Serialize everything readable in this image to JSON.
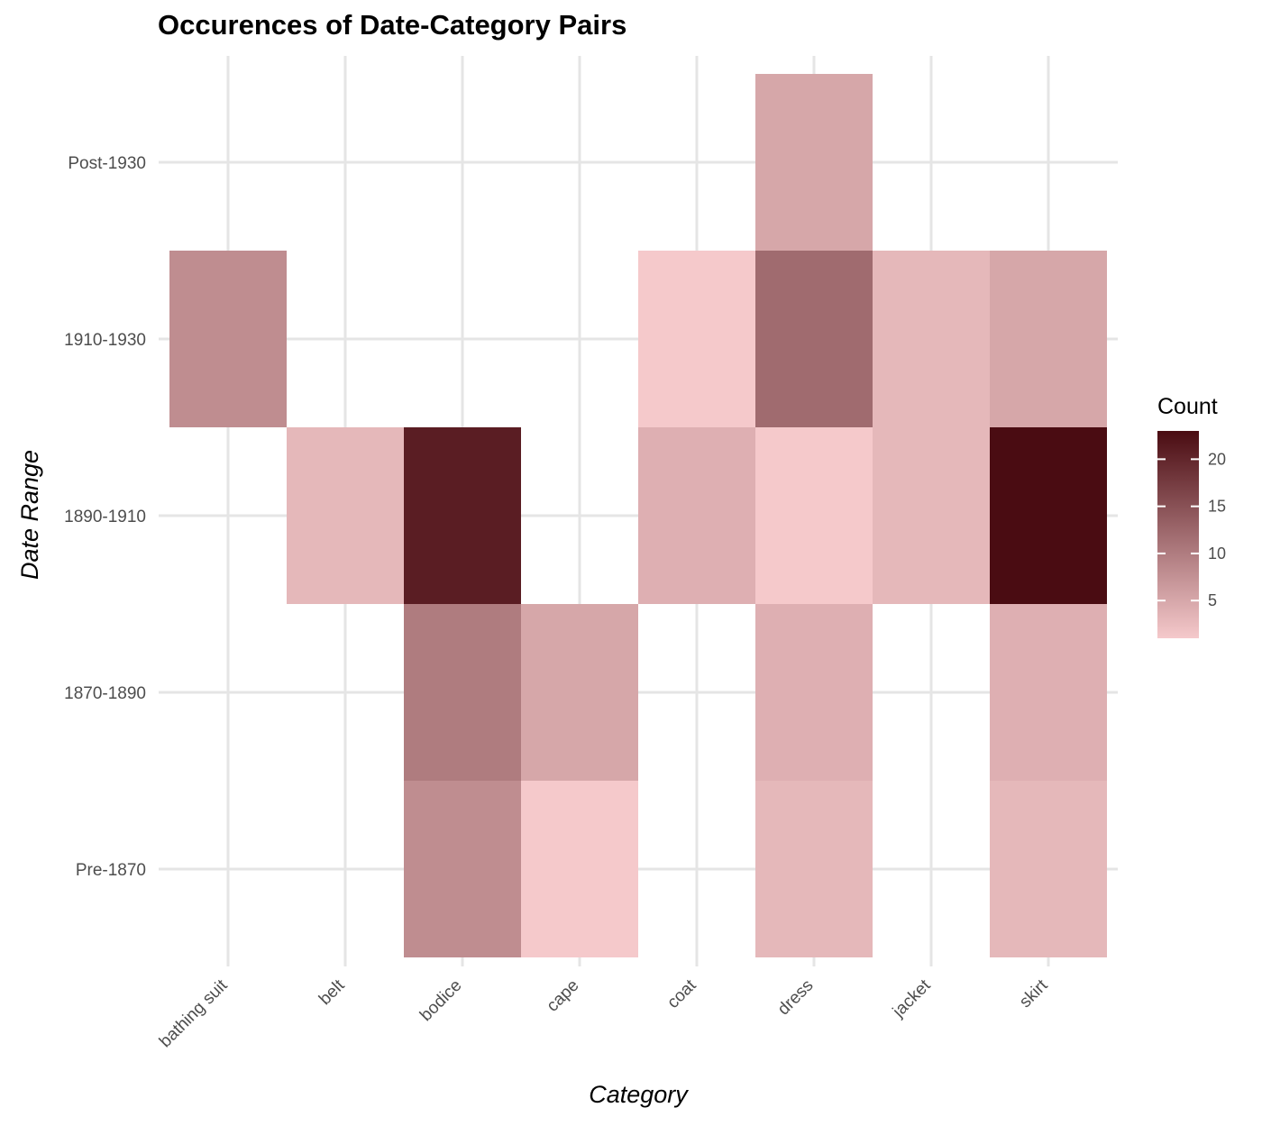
{
  "chart_data": {
    "type": "heatmap",
    "title": "Occurences of Date-Category Pairs",
    "xlabel": "Category",
    "ylabel": "Date Range",
    "x_categories": [
      "bathing suit",
      "belt",
      "bodice",
      "cape",
      "coat",
      "dress",
      "jacket",
      "skirt"
    ],
    "y_categories": [
      "Pre-1870",
      "1870-1890",
      "1890-1910",
      "1910-1930",
      "Post-1930"
    ],
    "cells": [
      {
        "x": "bodice",
        "y": "Pre-1870",
        "value": 8
      },
      {
        "x": "cape",
        "y": "Pre-1870",
        "value": 1
      },
      {
        "x": "dress",
        "y": "Pre-1870",
        "value": 3
      },
      {
        "x": "skirt",
        "y": "Pre-1870",
        "value": 3
      },
      {
        "x": "bodice",
        "y": "1870-1890",
        "value": 10
      },
      {
        "x": "cape",
        "y": "1870-1890",
        "value": 5
      },
      {
        "x": "dress",
        "y": "1870-1890",
        "value": 4
      },
      {
        "x": "skirt",
        "y": "1870-1890",
        "value": 4
      },
      {
        "x": "belt",
        "y": "1890-1910",
        "value": 3
      },
      {
        "x": "bodice",
        "y": "1890-1910",
        "value": 21
      },
      {
        "x": "coat",
        "y": "1890-1910",
        "value": 4
      },
      {
        "x": "dress",
        "y": "1890-1910",
        "value": 1
      },
      {
        "x": "jacket",
        "y": "1890-1910",
        "value": 3
      },
      {
        "x": "skirt",
        "y": "1890-1910",
        "value": 23
      },
      {
        "x": "bathing suit",
        "y": "1910-1930",
        "value": 8
      },
      {
        "x": "coat",
        "y": "1910-1930",
        "value": 1
      },
      {
        "x": "dress",
        "y": "1910-1930",
        "value": 12
      },
      {
        "x": "jacket",
        "y": "1910-1930",
        "value": 3
      },
      {
        "x": "skirt",
        "y": "1910-1930",
        "value": 5
      },
      {
        "x": "dress",
        "y": "Post-1930",
        "value": 5
      }
    ],
    "legend": {
      "title": "Count",
      "ticks": [
        5,
        10,
        15,
        20
      ],
      "range": [
        1,
        23
      ],
      "low_color": "#f5c9cb",
      "high_color": "#4a0c12",
      "placement": "right"
    },
    "grid": true
  }
}
